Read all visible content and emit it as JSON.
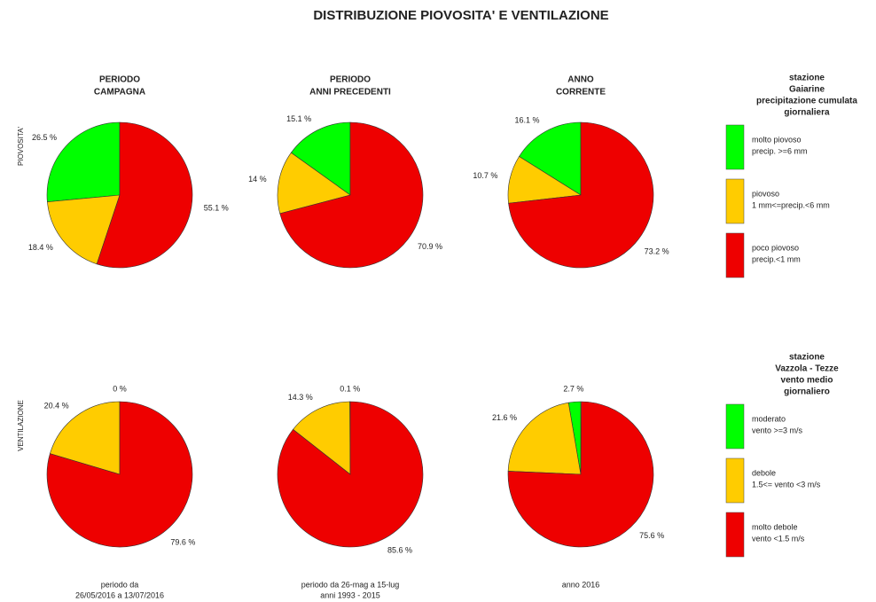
{
  "title": "DISTRIBUZIONE PIOVOSITA' E VENTILAZIONE",
  "columns": [
    {
      "title": [
        "PERIODO",
        "CAMPAGNA"
      ],
      "footer": [
        "periodo da",
        "26/05/2016  a  13/07/2016"
      ]
    },
    {
      "title": [
        "PERIODO",
        "ANNI PRECEDENTI"
      ],
      "footer": [
        "periodo da  26-mag  a  15-lug",
        "anni 1993 - 2015"
      ]
    },
    {
      "title": [
        "ANNO",
        "CORRENTE"
      ],
      "footer": [
        "anno  2016"
      ]
    }
  ],
  "rows": [
    {
      "label": "PIOVOSITA'",
      "legend": {
        "title": [
          "stazione",
          "Gaiarine",
          "precipitazione cumulata",
          "giornaliera"
        ],
        "entries": [
          [
            "molto piovoso",
            "precip. >=6 mm"
          ],
          [
            "piovoso",
            "1 mm<=precip.<6 mm"
          ],
          [
            "poco piovoso",
            "precip.<1 mm"
          ]
        ]
      }
    },
    {
      "label": "VENTILAZIONE",
      "legend": {
        "title": [
          "stazione",
          "Vazzola - Tezze",
          "vento medio",
          "giornaliero"
        ],
        "entries": [
          [
            "moderato",
            "vento >=3 m/s"
          ],
          [
            "debole",
            "1.5<= vento <3 m/s"
          ],
          [
            "molto debole",
            "vento <1.5 m/s"
          ]
        ]
      }
    }
  ],
  "chart_data": [
    {
      "type": "pie",
      "values": [
        26.5,
        18.4,
        55.1
      ],
      "value_labels": [
        "26.5 %",
        "18.4 %",
        "55.1 %"
      ],
      "colors": [
        "#00ff00",
        "#ffcc00",
        "#ee0000"
      ]
    },
    {
      "type": "pie",
      "values": [
        15.1,
        14,
        70.9
      ],
      "value_labels": [
        "15.1 %",
        "14 %",
        "70.9 %"
      ],
      "colors": [
        "#00ff00",
        "#ffcc00",
        "#ee0000"
      ]
    },
    {
      "type": "pie",
      "values": [
        16.1,
        10.7,
        73.2
      ],
      "value_labels": [
        "16.1 %",
        "10.7 %",
        "73.2 %"
      ],
      "colors": [
        "#00ff00",
        "#ffcc00",
        "#ee0000"
      ]
    },
    {
      "type": "pie",
      "values": [
        0,
        20.4,
        79.6
      ],
      "value_labels": [
        "0 %",
        "20.4 %",
        "79.6 %"
      ],
      "colors": [
        "#00ff00",
        "#ffcc00",
        "#ee0000"
      ]
    },
    {
      "type": "pie",
      "values": [
        0.1,
        14.3,
        85.6
      ],
      "value_labels": [
        "0.1 %",
        "14.3 %",
        "85.6 %"
      ],
      "colors": [
        "#00ff00",
        "#ffcc00",
        "#ee0000"
      ]
    },
    {
      "type": "pie",
      "values": [
        2.7,
        21.6,
        75.6
      ],
      "value_labels": [
        "2.7 %",
        "21.6 %",
        "75.6 %"
      ],
      "colors": [
        "#00ff00",
        "#ffcc00",
        "#ee0000"
      ]
    }
  ]
}
